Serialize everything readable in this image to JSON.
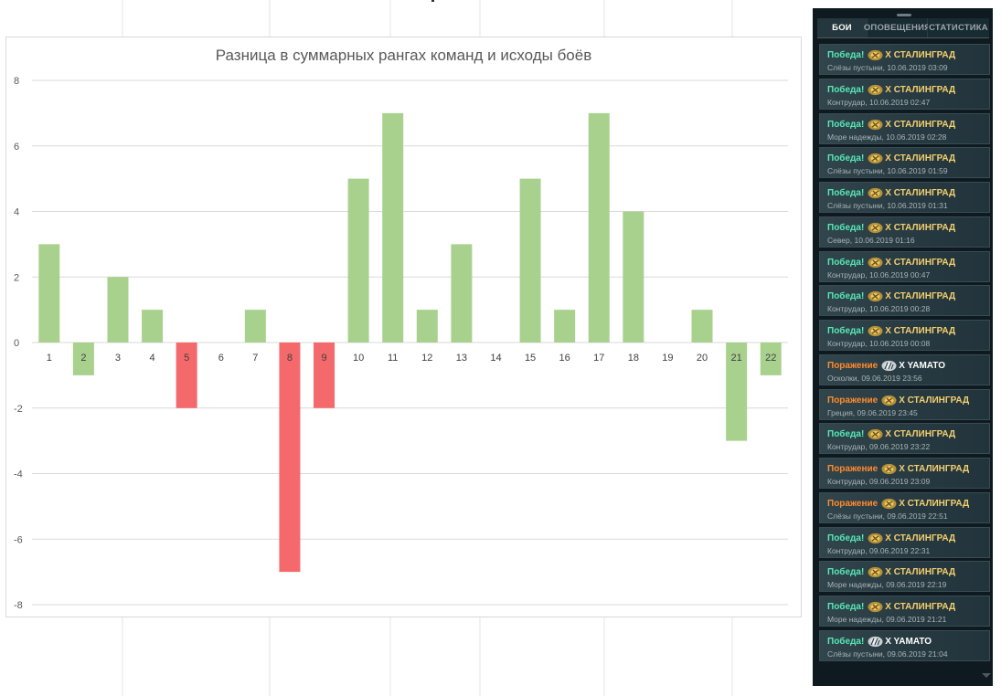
{
  "chart_data": {
    "type": "bar",
    "title": "Разница в суммарных рангах команд и исходы боёв",
    "xlabel": "",
    "ylabel": "",
    "categories": [
      "1",
      "2",
      "3",
      "4",
      "5",
      "6",
      "7",
      "8",
      "9",
      "10",
      "11",
      "12",
      "13",
      "14",
      "15",
      "16",
      "17",
      "18",
      "19",
      "20",
      "21",
      "22"
    ],
    "values": [
      3,
      -1,
      2,
      1,
      -2,
      0,
      1,
      -7,
      -2,
      5,
      7,
      1,
      3,
      0,
      5,
      1,
      7,
      4,
      0,
      1,
      -3,
      -1
    ],
    "bar_colors": [
      "#a9d18e",
      "#a9d18e",
      "#a9d18e",
      "#a9d18e",
      "#f4696b",
      "#a9d18e",
      "#a9d18e",
      "#f4696b",
      "#f4696b",
      "#a9d18e",
      "#a9d18e",
      "#a9d18e",
      "#a9d18e",
      "#a9d18e",
      "#a9d18e",
      "#a9d18e",
      "#a9d18e",
      "#a9d18e",
      "#a9d18e",
      "#a9d18e",
      "#a9d18e",
      "#a9d18e"
    ],
    "ylim": [
      -8,
      8
    ],
    "yticks": [
      "8",
      "6",
      "4",
      "2",
      "0",
      "-2",
      "-4",
      "-6",
      "-8"
    ],
    "grid": true,
    "legend": "none"
  },
  "colors": {
    "win_bar": "#a9d18e",
    "loss_bar": "#f4696b",
    "win_text": "#57e8b6",
    "loss_text": "#ff8b2e",
    "ship_name": "#f4cf6e"
  },
  "panel": {
    "tabs": [
      {
        "label": "БОИ",
        "active": true
      },
      {
        "label": "ОПОВЕЩЕНИЯ",
        "active": false
      },
      {
        "label": "СТАТИСТИКА",
        "active": false
      }
    ],
    "battles": [
      {
        "result": "Победа!",
        "outcome": "win",
        "ship": "X СТАЛИНГРАД",
        "icon": "ussr-emblem-icon",
        "details": "Слёзы пустыни, 10.06.2019 03:09"
      },
      {
        "result": "Победа!",
        "outcome": "win",
        "ship": "X СТАЛИНГРАД",
        "icon": "ussr-emblem-icon",
        "details": "Контрудар, 10.06.2019 02:47"
      },
      {
        "result": "Победа!",
        "outcome": "win",
        "ship": "X СТАЛИНГРАД",
        "icon": "ussr-emblem-icon",
        "details": "Море надежды, 10.06.2019 02:28"
      },
      {
        "result": "Победа!",
        "outcome": "win",
        "ship": "X СТАЛИНГРАД",
        "icon": "ussr-emblem-icon",
        "details": "Слёзы пустыни, 10.06.2019 01:59"
      },
      {
        "result": "Победа!",
        "outcome": "win",
        "ship": "X СТАЛИНГРАД",
        "icon": "ussr-emblem-icon",
        "details": "Слёзы пустыни, 10.06.2019 01:31"
      },
      {
        "result": "Победа!",
        "outcome": "win",
        "ship": "X СТАЛИНГРАД",
        "icon": "ussr-emblem-icon",
        "details": "Север, 10.06.2019 01:16"
      },
      {
        "result": "Победа!",
        "outcome": "win",
        "ship": "X СТАЛИНГРАД",
        "icon": "ussr-emblem-icon",
        "details": "Контрудар, 10.06.2019 00:47"
      },
      {
        "result": "Победа!",
        "outcome": "win",
        "ship": "X СТАЛИНГРАД",
        "icon": "ussr-emblem-icon",
        "details": "Контрудар, 10.06.2019 00:28"
      },
      {
        "result": "Победа!",
        "outcome": "win",
        "ship": "X СТАЛИНГРАД",
        "icon": "ussr-emblem-icon",
        "details": "Контрудар, 10.06.2019 00:08"
      },
      {
        "result": "Поражение",
        "outcome": "loss",
        "ship": "X YAMATO",
        "icon": "japan-emblem-icon",
        "details": "Осколки, 09.06.2019 23:56"
      },
      {
        "result": "Поражение",
        "outcome": "loss",
        "ship": "X СТАЛИНГРАД",
        "icon": "ussr-emblem-icon",
        "details": "Греция, 09.06.2019 23:45"
      },
      {
        "result": "Победа!",
        "outcome": "win",
        "ship": "X СТАЛИНГРАД",
        "icon": "ussr-emblem-icon",
        "details": "Контрудар, 09.06.2019 23:22"
      },
      {
        "result": "Поражение",
        "outcome": "loss",
        "ship": "X СТАЛИНГРАД",
        "icon": "ussr-emblem-icon",
        "details": "Контрудар, 09.06.2019 23:09"
      },
      {
        "result": "Поражение",
        "outcome": "loss",
        "ship": "X СТАЛИНГРАД",
        "icon": "ussr-emblem-icon",
        "details": "Слёзы пустыни, 09.06.2019 22:51"
      },
      {
        "result": "Победа!",
        "outcome": "win",
        "ship": "X СТАЛИНГРАД",
        "icon": "ussr-emblem-icon",
        "details": "Контрудар, 09.06.2019 22:31"
      },
      {
        "result": "Победа!",
        "outcome": "win",
        "ship": "X СТАЛИНГРАД",
        "icon": "ussr-emblem-icon",
        "details": "Море надежды, 09.06.2019 22:19"
      },
      {
        "result": "Победа!",
        "outcome": "win",
        "ship": "X СТАЛИНГРАД",
        "icon": "ussr-emblem-icon",
        "details": "Море надежды, 09.06.2019 21:21"
      },
      {
        "result": "Победа!",
        "outcome": "win",
        "ship": "X YAMATO",
        "icon": "japan-emblem-icon",
        "details": "Слёзы пустыни, 09.06.2019 21:04"
      }
    ]
  }
}
